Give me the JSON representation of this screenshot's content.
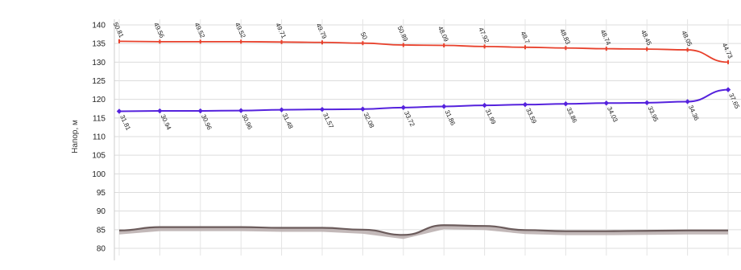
{
  "chart_data": {
    "type": "line",
    "ylabel": "Напор, м",
    "ylim": [
      80,
      140
    ],
    "y_ticks": [
      80,
      85,
      90,
      95,
      100,
      105,
      110,
      115,
      120,
      125,
      130,
      135,
      140
    ],
    "grid": true,
    "x": [
      0,
      1,
      2,
      3,
      4,
      5,
      6,
      7,
      8,
      9,
      10,
      11,
      12,
      13,
      14,
      15
    ],
    "series": [
      {
        "values": [
          135.6,
          135.5,
          135.5,
          135.5,
          135.4,
          135.3,
          135.1,
          134.6,
          134.5,
          134.2,
          134.0,
          133.8,
          133.6,
          133.5,
          133.3,
          130.0
        ],
        "labels": [
          "50.81",
          "49.56",
          "49.52",
          "49.52",
          "49.71",
          "49.79",
          "50",
          "50.89",
          "48.09",
          "47.92",
          "48.7",
          "48.83",
          "48.74",
          "48.45",
          "48.05",
          "44.73"
        ],
        "color": "#e8412c"
      },
      {
        "values": [
          116.8,
          116.9,
          116.9,
          117.0,
          117.2,
          117.3,
          117.4,
          117.8,
          118.1,
          118.4,
          118.6,
          118.8,
          119.0,
          119.1,
          119.4,
          122.6
        ],
        "labels": [
          "31.81",
          "30.94",
          "30.96",
          "30.96",
          "31.48",
          "31.57",
          "32.08",
          "33.72",
          "31.86",
          "31.99",
          "33.59",
          "33.86",
          "34.03",
          "33.95",
          "34.36",
          "37.65"
        ],
        "color": "#5522dd"
      },
      {
        "values": [
          84.8,
          85.7,
          85.7,
          85.7,
          85.5,
          85.5,
          85.0,
          83.6,
          86.2,
          86.0,
          84.9,
          84.6,
          84.6,
          84.7,
          84.8,
          84.8
        ],
        "labels": [],
        "color": "#6b5b5b"
      }
    ]
  }
}
